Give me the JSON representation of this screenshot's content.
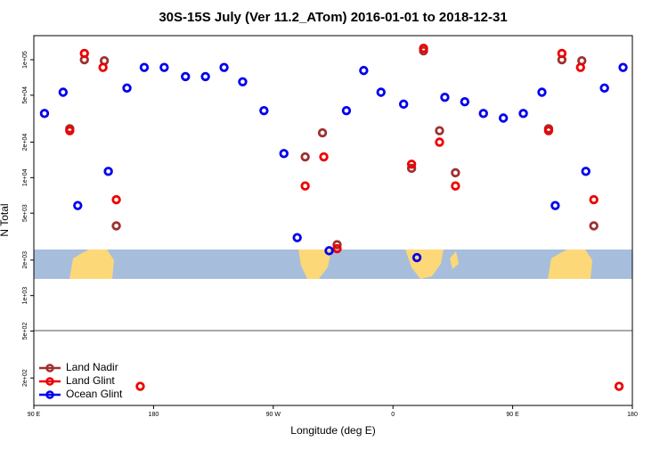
{
  "chart_data": {
    "type": "scatter",
    "title": "30S-15S July (Ver 11.2_ATom)   2016-01-01 to 2018-12-31",
    "x_label": "Longitude (deg E)",
    "y_label": "N Total",
    "xlim": [
      90,
      540
    ],
    "ylim": [
      117,
      160000
    ],
    "log_y": true,
    "legend": "lower left",
    "xticks": [
      {
        "value": 90,
        "label": "90 E"
      },
      {
        "value": 180,
        "label": "180"
      },
      {
        "value": 270,
        "label": "90 W"
      },
      {
        "value": 360,
        "label": "0"
      },
      {
        "value": 450,
        "label": "90 E"
      },
      {
        "value": 540,
        "label": "180"
      }
    ],
    "yticks": [
      {
        "value": 100000,
        "label": "1e+05"
      },
      {
        "value": 50000,
        "label": "5e+04"
      },
      {
        "value": 20000,
        "label": "2e+04"
      },
      {
        "value": 10000,
        "label": "1e+04"
      },
      {
        "value": 5000,
        "label": "5e+03"
      },
      {
        "value": 2000,
        "label": "2e+03"
      },
      {
        "value": 1000,
        "label": "1e+03"
      },
      {
        "value": 500,
        "label": "5e+02"
      },
      {
        "value": 200,
        "label": "2e+02"
      }
    ],
    "series": [
      {
        "name": "Land Nadir",
        "color": "#a03030",
        "x": [
          117,
          128,
          143,
          152,
          294,
          307,
          318,
          374,
          383,
          395,
          407,
          477,
          487,
          502,
          511
        ],
        "values": [
          26000,
          100000,
          98000,
          3900,
          15000,
          24000,
          2700,
          12000,
          119000,
          25000,
          11000,
          26000,
          100000,
          98000,
          3900
        ]
      },
      {
        "name": "Land Glint",
        "color": "#ee0000",
        "x": [
          117,
          128,
          142,
          152,
          170,
          294,
          308,
          318,
          374,
          383,
          395,
          407,
          477,
          487,
          501,
          511,
          530
        ],
        "values": [
          25000,
          113000,
          86000,
          6500,
          170,
          8500,
          15000,
          2500,
          13000,
          125000,
          20000,
          8500,
          25000,
          113000,
          86000,
          6500,
          170
        ]
      },
      {
        "name": "Ocean Glint",
        "color": "#0000ee",
        "x": [
          98,
          112,
          123,
          146,
          160,
          173,
          188,
          204,
          219,
          233,
          247,
          263,
          278,
          288,
          312,
          325,
          338,
          351,
          368,
          378,
          399,
          414,
          428,
          443,
          458,
          472,
          482,
          505,
          519,
          533
        ],
        "values": [
          35000,
          53000,
          5800,
          11300,
          57500,
          86000,
          86000,
          72000,
          72000,
          86000,
          65000,
          37000,
          16000,
          3100,
          2400,
          37000,
          81000,
          53000,
          42000,
          2100,
          48000,
          44000,
          35000,
          32000,
          35000,
          53000,
          5800,
          11300,
          57500,
          86000
        ]
      }
    ]
  }
}
